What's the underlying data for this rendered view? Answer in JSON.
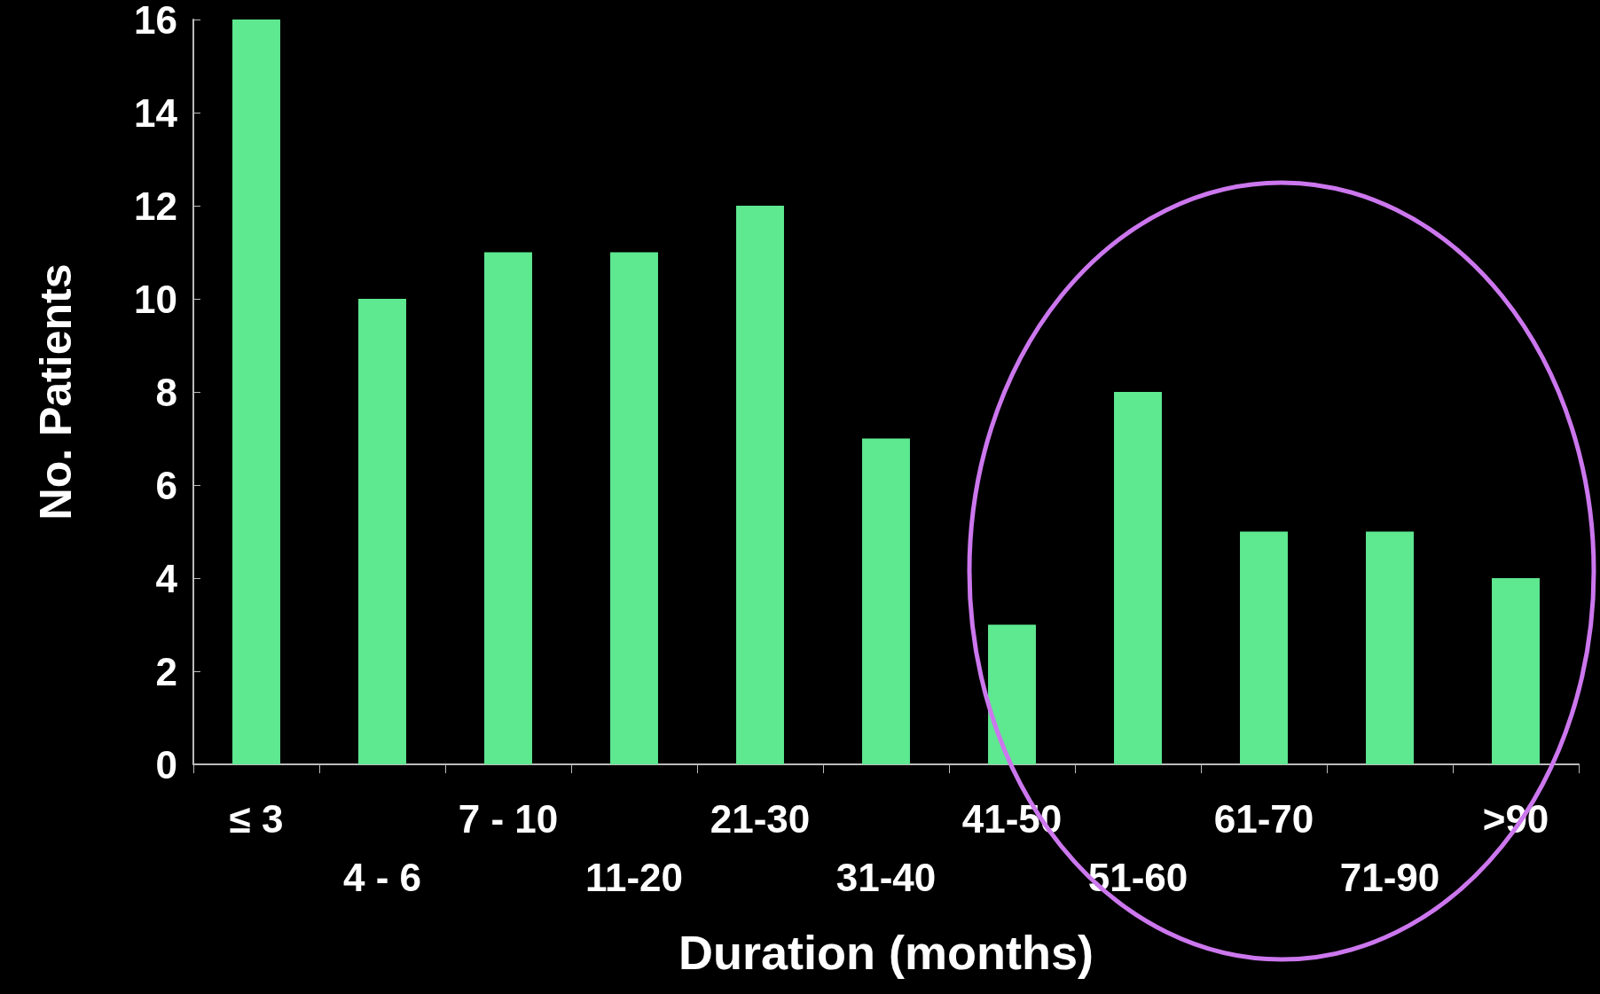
{
  "chart_data": {
    "type": "bar",
    "xlabel": "Duration (months)",
    "ylabel": "No. Patients",
    "categories": [
      "≤ 3",
      "4 - 6",
      "7 - 10",
      "11-20",
      "21-30",
      "31-40",
      "41-50",
      "51-60",
      "61-70",
      "71-90",
      ">90"
    ],
    "values": [
      16,
      10,
      11,
      11,
      12,
      7,
      3,
      8,
      5,
      5,
      4
    ],
    "color": "#5ee890",
    "ylim": [
      0,
      16
    ],
    "yticks": [
      0,
      2,
      4,
      6,
      8,
      10,
      12,
      14,
      16
    ],
    "grid": false
  }
}
